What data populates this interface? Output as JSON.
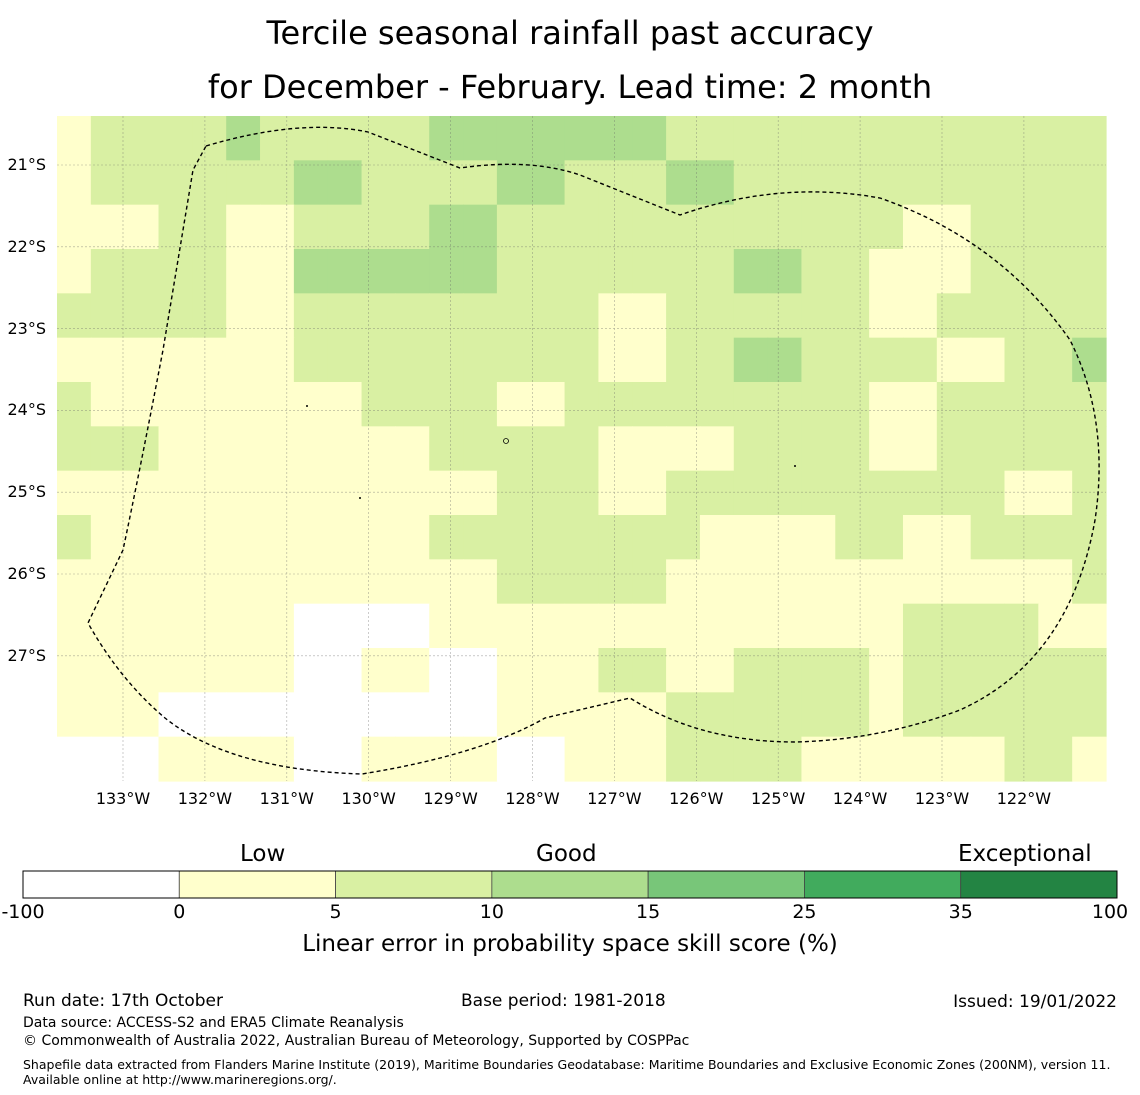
{
  "title": {
    "line1": "Tercile seasonal rainfall past accuracy",
    "line2": "for December - February. Lead time: 2 month"
  },
  "map": {
    "lat_labels": [
      "21°S",
      "22°S",
      "23°S",
      "24°S",
      "25°S",
      "26°S",
      "27°S"
    ],
    "lon_labels": [
      "133°W",
      "132°W",
      "131°W",
      "130°W",
      "129°W",
      "128°W",
      "127°W",
      "126°W",
      "125°W",
      "124°W",
      "123°W",
      "122°W"
    ],
    "grid_categories": [
      [
        1,
        2,
        2,
        2,
        2,
        3,
        2,
        2,
        2,
        2,
        2,
        3,
        3,
        3,
        3,
        3,
        3,
        3,
        2,
        2,
        2,
        2,
        2,
        2,
        2,
        2,
        2,
        2,
        2,
        2,
        2
      ],
      [
        1,
        2,
        2,
        2,
        2,
        2,
        2,
        3,
        3,
        2,
        2,
        2,
        2,
        3,
        3,
        2,
        2,
        2,
        3,
        3,
        2,
        2,
        2,
        2,
        2,
        2,
        2,
        2,
        2,
        2,
        2
      ],
      [
        1,
        1,
        1,
        2,
        2,
        1,
        1,
        2,
        2,
        2,
        2,
        3,
        3,
        2,
        2,
        2,
        2,
        2,
        2,
        2,
        2,
        2,
        2,
        2,
        2,
        1,
        1,
        2,
        2,
        2,
        2
      ],
      [
        1,
        2,
        2,
        2,
        2,
        1,
        1,
        3,
        3,
        3,
        3,
        3,
        3,
        2,
        2,
        2,
        2,
        2,
        2,
        2,
        3,
        3,
        2,
        2,
        1,
        1,
        1,
        2,
        2,
        2,
        2
      ],
      [
        2,
        2,
        2,
        2,
        2,
        1,
        1,
        2,
        2,
        2,
        2,
        2,
        2,
        2,
        2,
        2,
        1,
        1,
        2,
        2,
        2,
        2,
        2,
        2,
        1,
        1,
        2,
        2,
        2,
        2,
        2
      ],
      [
        1,
        1,
        1,
        1,
        1,
        1,
        1,
        2,
        2,
        2,
        2,
        2,
        2,
        2,
        2,
        2,
        1,
        1,
        2,
        2,
        3,
        3,
        2,
        2,
        2,
        2,
        1,
        1,
        2,
        2,
        3
      ],
      [
        2,
        1,
        1,
        1,
        1,
        1,
        1,
        1,
        1,
        2,
        2,
        2,
        2,
        1,
        1,
        2,
        2,
        2,
        2,
        2,
        2,
        2,
        2,
        2,
        1,
        1,
        2,
        2,
        2,
        2,
        2
      ],
      [
        2,
        2,
        2,
        1,
        1,
        1,
        1,
        1,
        1,
        1,
        1,
        2,
        2,
        2,
        2,
        2,
        1,
        1,
        1,
        1,
        2,
        2,
        2,
        2,
        1,
        1,
        2,
        2,
        2,
        2,
        2
      ],
      [
        1,
        1,
        1,
        1,
        1,
        1,
        1,
        1,
        1,
        1,
        1,
        1,
        1,
        2,
        2,
        2,
        1,
        1,
        2,
        2,
        2,
        2,
        2,
        2,
        2,
        2,
        2,
        2,
        1,
        1,
        2
      ],
      [
        2,
        1,
        1,
        1,
        1,
        1,
        1,
        1,
        1,
        1,
        1,
        2,
        2,
        2,
        2,
        2,
        2,
        2,
        2,
        1,
        1,
        1,
        1,
        2,
        2,
        1,
        1,
        2,
        2,
        2,
        2
      ],
      [
        1,
        1,
        1,
        1,
        1,
        1,
        1,
        1,
        1,
        1,
        1,
        1,
        1,
        2,
        2,
        2,
        2,
        2,
        1,
        1,
        1,
        1,
        1,
        1,
        1,
        1,
        1,
        1,
        1,
        1,
        2
      ],
      [
        1,
        1,
        1,
        1,
        1,
        1,
        1,
        0,
        0,
        0,
        0,
        1,
        1,
        1,
        1,
        1,
        1,
        1,
        1,
        1,
        1,
        1,
        1,
        1,
        1,
        2,
        2,
        2,
        2,
        1,
        1
      ],
      [
        1,
        1,
        1,
        1,
        1,
        1,
        1,
        0,
        0,
        1,
        1,
        0,
        0,
        1,
        1,
        1,
        2,
        2,
        1,
        1,
        2,
        2,
        2,
        2,
        1,
        2,
        2,
        2,
        2,
        2,
        2
      ],
      [
        1,
        1,
        1,
        0,
        0,
        0,
        0,
        0,
        0,
        0,
        0,
        0,
        0,
        1,
        1,
        1,
        1,
        1,
        2,
        2,
        2,
        2,
        2,
        2,
        1,
        2,
        2,
        2,
        2,
        2,
        2
      ],
      [
        0,
        0,
        0,
        1,
        1,
        1,
        1,
        0,
        0,
        1,
        1,
        1,
        1,
        0,
        0,
        1,
        1,
        1,
        2,
        2,
        2,
        2,
        1,
        1,
        1,
        1,
        1,
        1,
        2,
        2,
        1
      ]
    ]
  },
  "colorbar": {
    "categories": [
      "Low",
      "Good",
      "Exceptional"
    ],
    "ticks": [
      "-100",
      "0",
      "5",
      "10",
      "15",
      "25",
      "35",
      "100"
    ],
    "colors": [
      "#ffffff",
      "#ffffcc",
      "#d9f0a3",
      "#addd8e",
      "#78c679",
      "#41ab5d",
      "#238443"
    ],
    "label": "Linear error in probability space skill score (%)"
  },
  "footer": {
    "run_date": "Run date: 17th October",
    "base_period": "Base period: 1981-2018",
    "issued": "Issued: 19/01/2022",
    "data_source": "Data source: ACCESS-S2 and ERA5 Climate Reanalysis",
    "copyright": "© Commonwealth of Australia 2022, Australian Bureau of Meteorology, Supported by COSPPac",
    "shapefile": "Shapefile data extracted from Flanders Marine Institute (2019), Maritime Boundaries Geodatabase: Maritime Boundaries and Exclusive Economic Zones (200NM), version 11. Available online at http://www.marineregions.org/."
  }
}
